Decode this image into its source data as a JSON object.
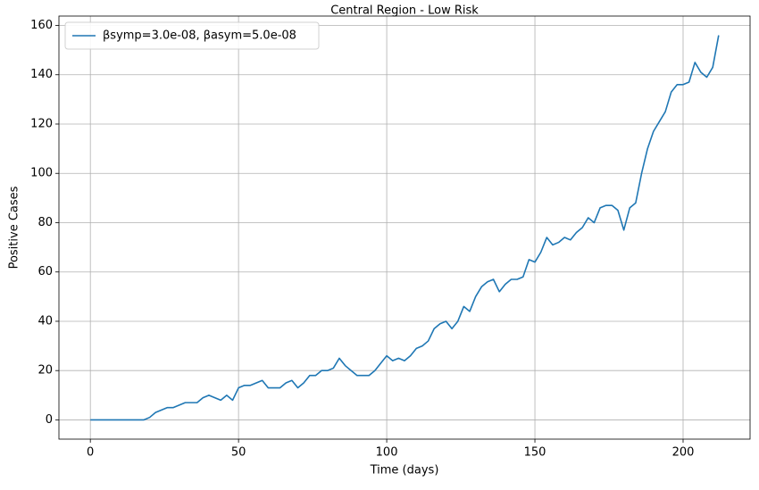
{
  "chart_data": {
    "type": "line",
    "title": "Central Region - Low Risk",
    "x_label": "Time (days)",
    "y_label": "Positive Cases",
    "x": [
      0,
      2,
      4,
      6,
      8,
      10,
      12,
      14,
      16,
      18,
      20,
      22,
      24,
      26,
      28,
      30,
      32,
      34,
      36,
      38,
      40,
      42,
      44,
      46,
      48,
      50,
      52,
      54,
      56,
      58,
      60,
      62,
      64,
      66,
      68,
      70,
      72,
      74,
      76,
      78,
      80,
      82,
      84,
      86,
      88,
      90,
      92,
      94,
      96,
      98,
      100,
      102,
      104,
      106,
      108,
      110,
      112,
      114,
      116,
      118,
      120,
      122,
      124,
      126,
      128,
      130,
      132,
      134,
      136,
      138,
      140,
      142,
      144,
      146,
      148,
      150,
      152,
      154,
      156,
      158,
      160,
      162,
      164,
      166,
      168,
      170,
      172,
      174,
      176,
      178,
      180,
      182,
      184,
      186,
      188,
      190,
      192,
      194,
      196,
      198,
      200,
      202,
      204,
      206,
      208,
      210,
      212
    ],
    "series": [
      {
        "name": "βsymp=3.0e-08, βasym=5.0e-08",
        "color": "#1f77b4",
        "values": [
          0,
          0,
          0,
          0,
          0,
          0,
          0,
          0,
          0,
          0,
          1,
          3,
          4,
          5,
          5,
          6,
          7,
          7,
          7,
          9,
          10,
          9,
          8,
          10,
          8,
          13,
          14,
          14,
          15,
          16,
          13,
          13,
          13,
          15,
          16,
          13,
          15,
          18,
          18,
          20,
          20,
          21,
          25,
          22,
          20,
          18,
          18,
          18,
          20,
          23,
          26,
          24,
          25,
          24,
          26,
          29,
          30,
          32,
          37,
          39,
          40,
          37,
          40,
          46,
          44,
          50,
          54,
          56,
          57,
          52,
          55,
          57,
          57,
          58,
          65,
          64,
          68,
          74,
          71,
          72,
          74,
          73,
          76,
          78,
          82,
          80,
          86,
          87,
          87,
          85,
          77,
          86,
          88,
          100,
          110,
          117,
          121,
          125,
          133,
          136,
          136,
          137,
          145,
          141,
          139,
          143,
          156
        ]
      }
    ],
    "xlim": [
      -10.6,
      222.6
    ],
    "ylim": [
      -7.8,
      163.8
    ],
    "xticks": [
      0,
      50,
      100,
      150,
      200
    ],
    "yticks": [
      0,
      20,
      40,
      60,
      80,
      100,
      120,
      140,
      160
    ],
    "grid": true,
    "legend": "upper-left"
  }
}
